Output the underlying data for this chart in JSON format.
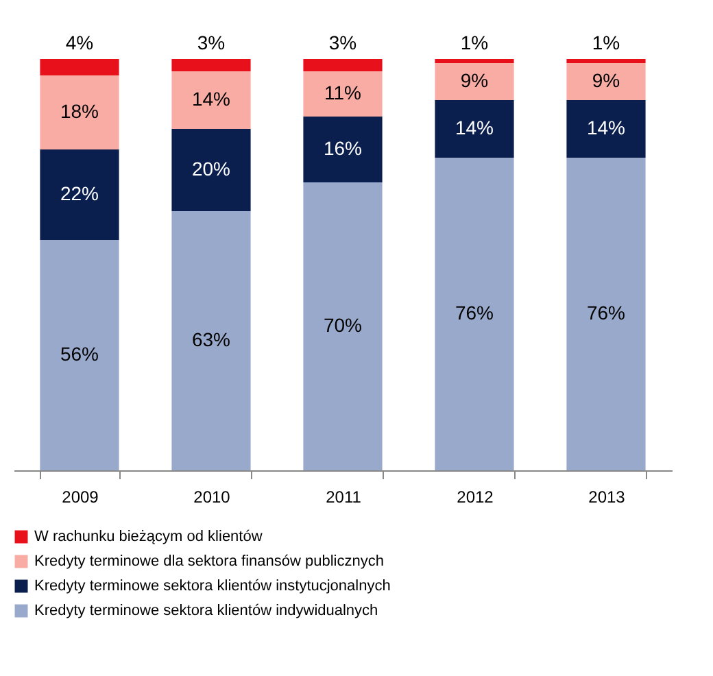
{
  "chart_data": {
    "type": "bar",
    "stacked": true,
    "categories": [
      "2009",
      "2010",
      "2011",
      "2012",
      "2013"
    ],
    "series": [
      {
        "name": "Kredyty terminowe sektora klientów indywidualnych",
        "color": "#98a9cb",
        "values": [
          56,
          63,
          70,
          76,
          76
        ],
        "value_labels": [
          "56%",
          "63%",
          "70%",
          "76%",
          "76%"
        ]
      },
      {
        "name": "Kredyty terminowe sektora klientów instytucjonalnych",
        "color": "#0a1f4e",
        "values": [
          22,
          20,
          16,
          14,
          14
        ],
        "value_labels": [
          "22%",
          "20%",
          "16%",
          "14%",
          "14%"
        ]
      },
      {
        "name": "Kredyty terminowe dla sektora finansów publicznych",
        "color": "#f9aca4",
        "values": [
          18,
          14,
          11,
          9,
          9
        ],
        "value_labels": [
          "18%",
          "14%",
          "11%",
          "9%",
          "9%"
        ]
      },
      {
        "name": "W rachunku bieżącym od klientów",
        "color": "#e8101a",
        "values": [
          4,
          3,
          3,
          1,
          1
        ],
        "value_labels": [
          "4%",
          "3%",
          "3%",
          "1%",
          "1%"
        ]
      }
    ],
    "legend": "bottom",
    "grid": false
  }
}
